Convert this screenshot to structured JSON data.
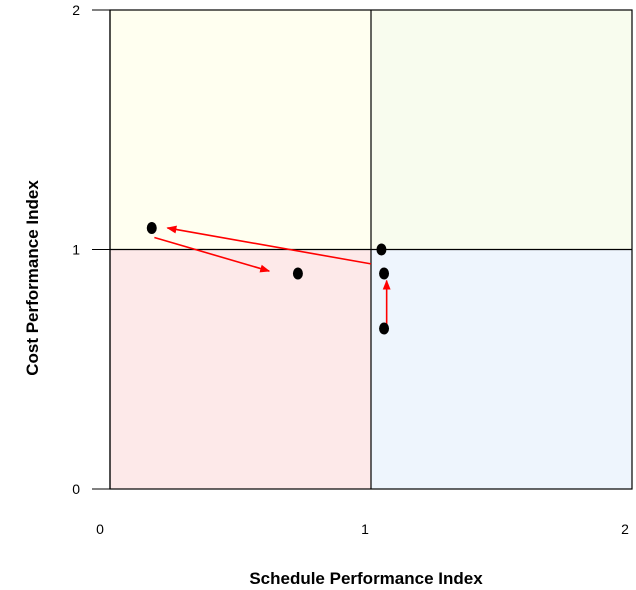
{
  "chart_data": {
    "type": "scatter",
    "title": "",
    "xlabel": "Schedule Performance Index",
    "ylabel": "Cost Performance Index",
    "xlim": [
      0,
      2
    ],
    "ylim": [
      0,
      2
    ],
    "x_ticks": [
      0,
      1,
      2
    ],
    "y_ticks": [
      0,
      1,
      2
    ],
    "reference_lines": {
      "x": 1,
      "y": 1
    },
    "quadrants": [
      {
        "name": "upper-left",
        "x_range": [
          0,
          1
        ],
        "y_range": [
          1,
          2
        ],
        "color": "#FFFFF0"
      },
      {
        "name": "upper-right",
        "x_range": [
          1,
          2
        ],
        "y_range": [
          1,
          2
        ],
        "color": "#F8FCEE"
      },
      {
        "name": "lower-left",
        "x_range": [
          0,
          1
        ],
        "y_range": [
          0,
          1
        ],
        "color": "#FDE9E9"
      },
      {
        "name": "lower-right",
        "x_range": [
          1,
          2
        ],
        "y_range": [
          0,
          1
        ],
        "color": "#EEF5FD"
      }
    ],
    "points": [
      {
        "x": 1.05,
        "y": 0.67
      },
      {
        "x": 1.05,
        "y": 0.9
      },
      {
        "x": 1.04,
        "y": 1.0
      },
      {
        "x": 0.16,
        "y": 1.09
      },
      {
        "x": 0.72,
        "y": 0.9
      }
    ],
    "arrows": [
      {
        "from": [
          1.06,
          0.66
        ],
        "to": [
          1.06,
          0.87
        ]
      },
      {
        "from": [
          1.0,
          0.94
        ],
        "to": [
          0.22,
          1.09
        ]
      },
      {
        "from": [
          0.17,
          1.05
        ],
        "to": [
          0.61,
          0.91
        ]
      }
    ],
    "colors": {
      "points": "#000000",
      "arrows": "#FF0000",
      "lines": "#000000"
    },
    "grid": false,
    "legend": "none"
  }
}
